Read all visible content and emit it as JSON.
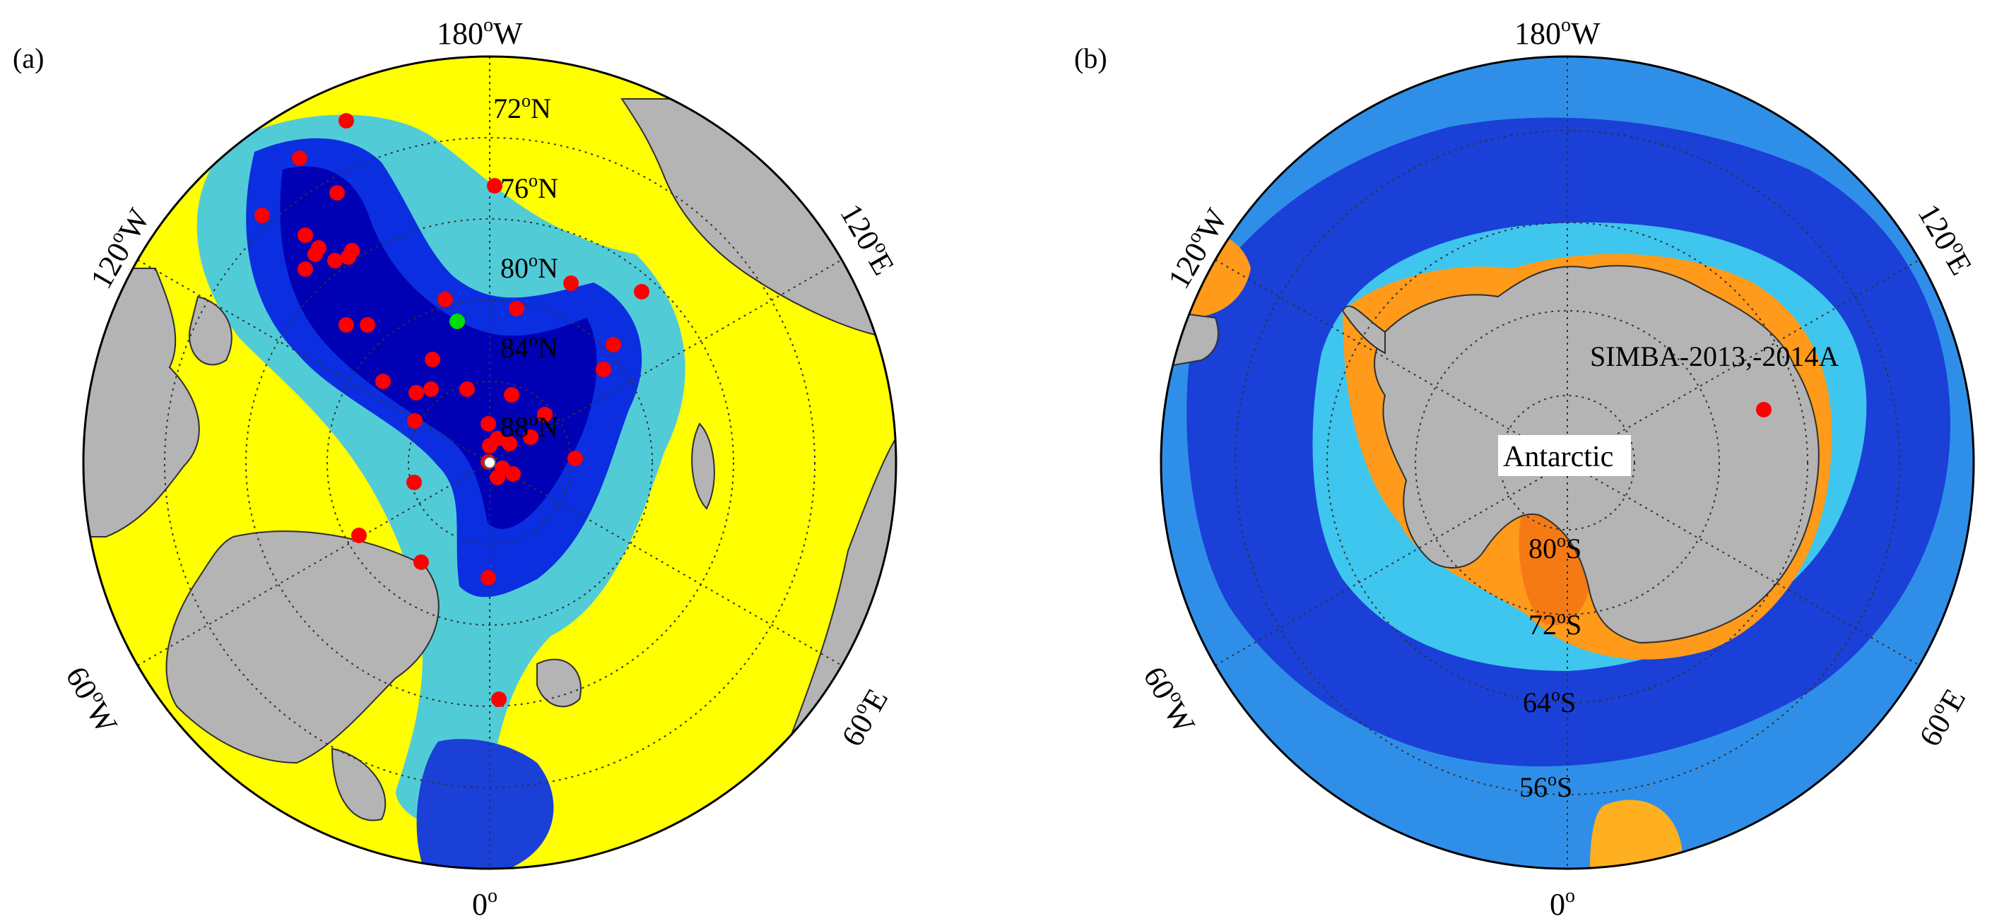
{
  "panels": [
    {
      "id": "a",
      "panel_label": "(a)",
      "lon_labels": {
        "top": "180",
        "right": "120",
        "lower_right": "60",
        "bottom": "0",
        "lower_left": "60",
        "left": "120"
      },
      "lon_suffix": {
        "top": "W",
        "right": "E",
        "lower_right": "E",
        "bottom": "",
        "lower_left": "W",
        "left": "W"
      },
      "lat_labels": [
        {
          "value": "72",
          "hemi": "N"
        },
        {
          "value": "76",
          "hemi": "N"
        },
        {
          "value": "80",
          "hemi": "N"
        },
        {
          "value": "84",
          "hemi": "N"
        },
        {
          "value": "88",
          "hemi": "N"
        }
      ],
      "lat_circles": [
        72,
        76,
        80,
        84
      ],
      "buoys": [
        {
          "lon": 180,
          "lat": 90,
          "color": "#ff0000"
        }
      ],
      "colors": {
        "ocean_high": "#ffff00",
        "ocean_mid": "#3ec6ee",
        "ocean_low": "#0000c8",
        "land": "#b4b4b4",
        "buoy": "#ff0000",
        "buoy_alt": "#00dd00",
        "pole_marker": "#ffffff"
      }
    },
    {
      "id": "b",
      "panel_label": "(b)",
      "lon_labels": {
        "top": "180",
        "right": "120",
        "lower_right": "60",
        "bottom": "0",
        "lower_left": "60",
        "left": "120"
      },
      "lon_suffix": {
        "top": "W",
        "right": "E",
        "lower_right": "E",
        "bottom": "",
        "lower_left": "W",
        "left": "W"
      },
      "lat_labels": [
        {
          "value": "80",
          "hemi": "S"
        },
        {
          "value": "72",
          "hemi": "S"
        },
        {
          "value": "64",
          "hemi": "S"
        },
        {
          "value": "56",
          "hemi": "S"
        }
      ],
      "station_label": "SIMBA-2013,-2014A",
      "region_label": "Antarctic",
      "colors": {
        "ocean_high": "#ff9a1a",
        "ocean_mid": "#3ec6ee",
        "ocean_low": "#1a40d8",
        "land": "#b4b4b4",
        "buoy": "#ff0000"
      }
    }
  ]
}
